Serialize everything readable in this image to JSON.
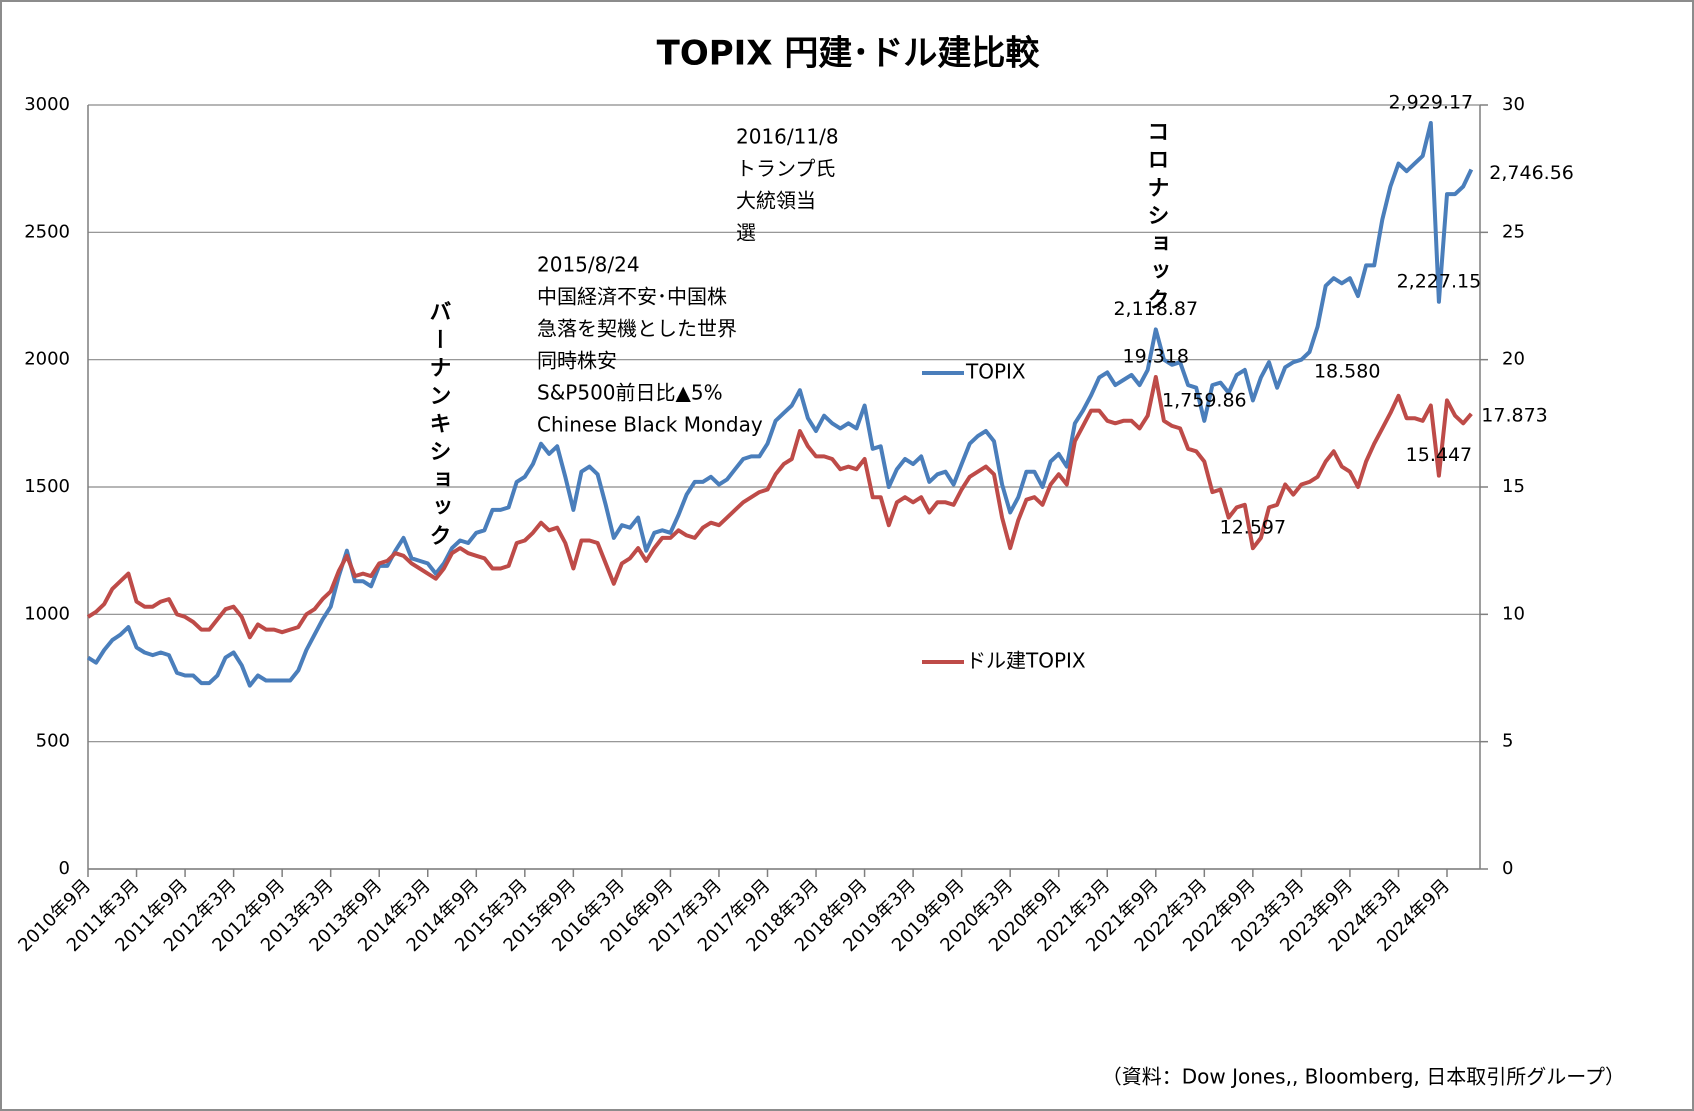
{
  "chart_data": {
    "type": "line",
    "title": "TOPIX 円建･ドル建比較",
    "categories": [
      "2010年9月",
      null,
      null,
      null,
      null,
      null,
      "2011年3月",
      null,
      null,
      null,
      null,
      null,
      "2011年9月",
      null,
      null,
      null,
      null,
      null,
      "2012年3月",
      null,
      null,
      null,
      null,
      null,
      "2012年9月",
      null,
      null,
      null,
      null,
      null,
      "2013年3月",
      null,
      null,
      null,
      null,
      null,
      "2013年9月",
      null,
      null,
      null,
      null,
      null,
      "2014年3月",
      null,
      null,
      null,
      null,
      null,
      "2014年9月",
      null,
      null,
      null,
      null,
      null,
      "2015年3月",
      null,
      null,
      null,
      null,
      null,
      "2015年9月",
      null,
      null,
      null,
      null,
      null,
      "2016年3月",
      null,
      null,
      null,
      null,
      null,
      "2016年9月",
      null,
      null,
      null,
      null,
      null,
      "2017年3月",
      null,
      null,
      null,
      null,
      null,
      "2017年9月",
      null,
      null,
      null,
      null,
      null,
      "2018年3月",
      null,
      null,
      null,
      null,
      null,
      "2018年9月",
      null,
      null,
      null,
      null,
      null,
      "2019年3月",
      null,
      null,
      null,
      null,
      null,
      "2019年9月",
      null,
      null,
      null,
      null,
      null,
      "2020年3月",
      null,
      null,
      null,
      null,
      null,
      "2020年9月",
      null,
      null,
      null,
      null,
      null,
      "2021年3月",
      null,
      null,
      null,
      null,
      null,
      "2021年9月",
      null,
      null,
      null,
      null,
      null,
      "2022年3月",
      null,
      null,
      null,
      null,
      null,
      "2022年9月",
      null,
      null,
      null,
      null,
      null,
      "2023年3月",
      null,
      null,
      null,
      null,
      null,
      "2023年9月",
      null,
      null,
      null,
      null,
      null,
      "2024年3月",
      null,
      null,
      null,
      null,
      null,
      "2024年9月",
      null,
      null,
      null
    ],
    "series": [
      {
        "name": "TOPIX",
        "color": "#4a7ebb",
        "label_color": "#2e86c1",
        "values": [
          830,
          810,
          860,
          899,
          920,
          950,
          870,
          850,
          840,
          850,
          840,
          770,
          760,
          760,
          730,
          730,
          760,
          830,
          850,
          800,
          720,
          760,
          740,
          740,
          740,
          740,
          780,
          860,
          920,
          980,
          1030,
          1150,
          1250,
          1130,
          1130,
          1110,
          1190,
          1190,
          1250,
          1300,
          1220,
          1210,
          1200,
          1160,
          1200,
          1260,
          1290,
          1280,
          1320,
          1330,
          1410,
          1410,
          1420,
          1520,
          1540,
          1590,
          1670,
          1630,
          1660,
          1540,
          1410,
          1560,
          1580,
          1550,
          1430,
          1300,
          1350,
          1340,
          1380,
          1250,
          1320,
          1330,
          1320,
          1390,
          1470,
          1520,
          1520,
          1540,
          1510,
          1530,
          1570,
          1610,
          1620,
          1620,
          1670,
          1760,
          1790,
          1820,
          1880,
          1770,
          1720,
          1780,
          1750,
          1730,
          1750,
          1730,
          1820,
          1650,
          1660,
          1500,
          1570,
          1610,
          1590,
          1620,
          1520,
          1550,
          1560,
          1510,
          1590,
          1670,
          1700,
          1720,
          1680,
          1510,
          1400,
          1460,
          1560,
          1560,
          1500,
          1600,
          1630,
          1580,
          1750,
          1800,
          1860,
          1930,
          1950,
          1900,
          1920,
          1940,
          1900,
          1960,
          2118.87,
          2000,
          1980,
          1990,
          1900,
          1890,
          1759.86,
          1900,
          1910,
          1870,
          1940,
          1960,
          1840,
          1930,
          1990,
          1890,
          1970,
          1990,
          2000,
          2030,
          2130,
          2290,
          2320,
          2300,
          2320,
          2250,
          2370,
          2370,
          2550,
          2680,
          2770,
          2740,
          2770,
          2800,
          2929.17,
          2227.15,
          2650,
          2650,
          2680,
          2746.56
        ],
        "value_labels": [
          null,
          null,
          null,
          null,
          null,
          null,
          null,
          null,
          null,
          null,
          null,
          null,
          null,
          null,
          null,
          null,
          null,
          null,
          null,
          null,
          null,
          null,
          null,
          null,
          null,
          null,
          null,
          null,
          null,
          null,
          null,
          null,
          null,
          null,
          null,
          null,
          null,
          null,
          null,
          null,
          null,
          null,
          null,
          null,
          null,
          null,
          null,
          null,
          null,
          null,
          null,
          null,
          null,
          null,
          null,
          null,
          null,
          null,
          null,
          null,
          null,
          null,
          null,
          null,
          null,
          null,
          null,
          null,
          null,
          null,
          null,
          null,
          null,
          null,
          null,
          null,
          null,
          null,
          null,
          null,
          null,
          null,
          null,
          null,
          null,
          null,
          null,
          null,
          null,
          null,
          null,
          null,
          null,
          null,
          null,
          null,
          null,
          null,
          null,
          null,
          null,
          null,
          null,
          null,
          null,
          null,
          null,
          null,
          null,
          null,
          null,
          null,
          null,
          null,
          null,
          null,
          null,
          null,
          null,
          null,
          null,
          null,
          null,
          null,
          null,
          null,
          null,
          null,
          null,
          null,
          null,
          null,
          "2,118.87",
          null,
          null,
          null,
          null,
          null,
          "1,759.86",
          null,
          null,
          null,
          null,
          null,
          null,
          null,
          null,
          null,
          null,
          null,
          null,
          null,
          null,
          null,
          null,
          null,
          null,
          null,
          null,
          null,
          null,
          null,
          null,
          null,
          null,
          null,
          "2,929.17",
          "2,227.15",
          null,
          null,
          null,
          "2,746.56"
        ]
      },
      {
        "name": "ドル建TOPIX",
        "color": "#be4b48",
        "label_color": "#e02020",
        "axis": "y2",
        "values": [
          9.9,
          10.1,
          10.4,
          11.0,
          11.3,
          11.6,
          10.5,
          10.3,
          10.3,
          10.5,
          10.6,
          10.0,
          9.9,
          9.7,
          9.4,
          9.4,
          9.8,
          10.2,
          10.3,
          9.9,
          9.1,
          9.6,
          9.4,
          9.4,
          9.3,
          9.4,
          9.5,
          10.0,
          10.2,
          10.6,
          10.9,
          11.7,
          12.3,
          11.5,
          11.6,
          11.5,
          12.0,
          12.1,
          12.4,
          12.3,
          12.0,
          11.8,
          11.6,
          11.4,
          11.8,
          12.4,
          12.6,
          12.4,
          12.3,
          12.2,
          11.8,
          11.8,
          11.9,
          12.8,
          12.9,
          13.2,
          13.6,
          13.3,
          13.4,
          12.8,
          11.8,
          12.9,
          12.9,
          12.8,
          12.0,
          11.2,
          12.0,
          12.2,
          12.6,
          12.1,
          12.6,
          13.0,
          13.0,
          13.3,
          13.1,
          13.0,
          13.4,
          13.6,
          13.5,
          13.8,
          14.1,
          14.4,
          14.6,
          14.8,
          14.9,
          15.5,
          15.9,
          16.1,
          17.2,
          16.6,
          16.2,
          16.2,
          16.1,
          15.7,
          15.8,
          15.7,
          16.1,
          14.6,
          14.6,
          13.5,
          14.4,
          14.6,
          14.4,
          14.6,
          14.0,
          14.4,
          14.4,
          14.3,
          14.9,
          15.4,
          15.6,
          15.8,
          15.5,
          13.8,
          12.6,
          13.7,
          14.5,
          14.6,
          14.3,
          15.1,
          15.5,
          15.1,
          16.8,
          17.4,
          18.0,
          18.0,
          17.6,
          17.5,
          17.6,
          17.6,
          17.3,
          17.8,
          19.318,
          17.6,
          17.4,
          17.3,
          16.5,
          16.4,
          16.0,
          14.8,
          14.9,
          13.8,
          14.2,
          14.3,
          12.597,
          13.0,
          14.2,
          14.3,
          15.1,
          14.7,
          15.1,
          15.2,
          15.4,
          16.0,
          16.4,
          15.8,
          15.6,
          15.0,
          16.0,
          16.7,
          17.3,
          17.9,
          18.58,
          17.7,
          17.7,
          17.6,
          18.2,
          15.447,
          18.4,
          17.8,
          17.5,
          17.873
        ],
        "value_labels": [
          null,
          null,
          null,
          null,
          null,
          null,
          null,
          null,
          null,
          null,
          null,
          null,
          null,
          null,
          null,
          null,
          null,
          null,
          null,
          null,
          null,
          null,
          null,
          null,
          null,
          null,
          null,
          null,
          null,
          null,
          null,
          null,
          null,
          null,
          null,
          null,
          null,
          null,
          null,
          null,
          null,
          null,
          null,
          null,
          null,
          null,
          null,
          null,
          null,
          null,
          null,
          null,
          null,
          null,
          null,
          null,
          null,
          null,
          null,
          null,
          null,
          null,
          null,
          null,
          null,
          null,
          null,
          null,
          null,
          null,
          null,
          null,
          null,
          null,
          null,
          null,
          null,
          null,
          null,
          null,
          null,
          null,
          null,
          null,
          null,
          null,
          null,
          null,
          null,
          null,
          null,
          null,
          null,
          null,
          null,
          null,
          null,
          null,
          null,
          null,
          null,
          null,
          null,
          null,
          null,
          null,
          null,
          null,
          null,
          null,
          null,
          null,
          null,
          null,
          null,
          null,
          null,
          null,
          null,
          null,
          null,
          null,
          null,
          null,
          null,
          null,
          null,
          null,
          null,
          null,
          null,
          null,
          "19.318",
          null,
          null,
          null,
          null,
          null,
          null,
          null,
          null,
          null,
          null,
          null,
          "12.597",
          null,
          null,
          null,
          null,
          null,
          null,
          null,
          null,
          null,
          null,
          null,
          null,
          null,
          null,
          null,
          null,
          null,
          "18.580",
          null,
          null,
          null,
          null,
          "15.447",
          null,
          null,
          null,
          "17.873"
        ]
      }
    ],
    "ylim": [
      0,
      3000
    ],
    "yticks": [
      0,
      500,
      1000,
      1500,
      2000,
      2500,
      3000
    ],
    "y2lim": [
      0,
      30
    ],
    "y2ticks": [
      0,
      5,
      10,
      15,
      20,
      25,
      30
    ],
    "grid": true,
    "annotations": [
      {
        "lines": [
          "2016/11/8",
          "トランプ氏",
          "大統領当",
          "選"
        ]
      },
      {
        "lines": [
          "2015/8/24",
          "中国経済不安･中国株",
          "急落を契機とした世界",
          "同時株安",
          "S&P500前日比▲5%",
          "Chinese Black Monday"
        ]
      },
      {
        "lines": [
          "バーナンキショック"
        ],
        "vertical": true
      },
      {
        "lines": [
          "コロナショック"
        ],
        "vertical": true
      }
    ],
    "source": "（資料：Dow Jones,, Bloomberg, 日本取引所グループ）"
  }
}
